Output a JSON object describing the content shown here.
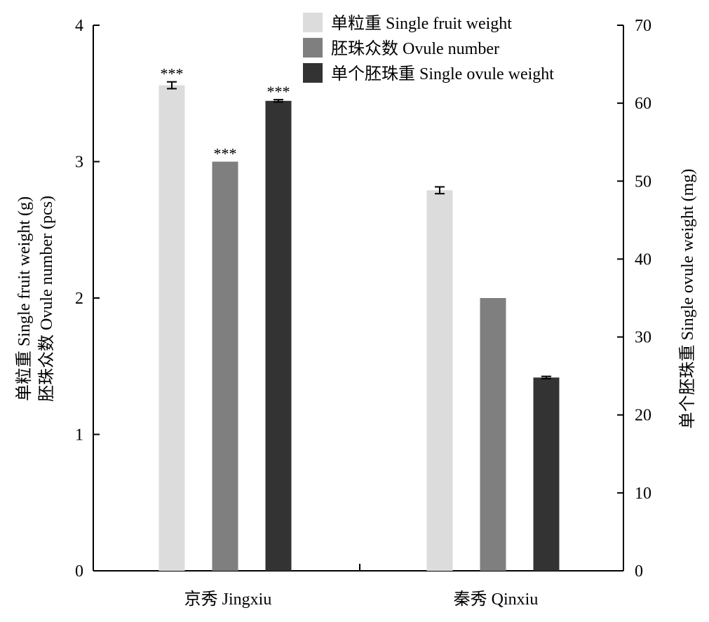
{
  "chart_data": {
    "type": "bar",
    "categories": [
      "京秀 Jingxiu",
      "秦秀 Qinxiu"
    ],
    "series": [
      {
        "name": "单粒重 Single fruit weight",
        "axis": "left",
        "color": "#dcdcdc",
        "values": [
          3.56,
          2.79
        ],
        "errors": [
          0.025,
          0.025
        ],
        "significance": [
          "***",
          ""
        ]
      },
      {
        "name": "胚珠众数 Ovule number",
        "axis": "left",
        "color": "#7f7f7f",
        "values": [
          3.0,
          2.0
        ],
        "errors": [
          0,
          0
        ],
        "significance": [
          "***",
          ""
        ]
      },
      {
        "name": "单个胚珠重 Single ovule weight",
        "axis": "right",
        "color": "#333333",
        "values": [
          60.3,
          24.8
        ],
        "errors": [
          0.15,
          0.15
        ],
        "significance": [
          "***",
          ""
        ]
      }
    ],
    "y_left": {
      "label_line1": "单粒重 Single fruit weight (g)",
      "label_line2": "胚珠众数 Ovule number (pcs)",
      "ylim": [
        0,
        4
      ],
      "ticks": [
        "0",
        "1",
        "2",
        "3",
        "4"
      ]
    },
    "y_right": {
      "label": "单个胚珠重 Single ovule weight (mg)",
      "ylim": [
        0,
        70
      ],
      "ticks": [
        "0",
        "10",
        "20",
        "30",
        "40",
        "50",
        "60",
        "70"
      ]
    },
    "legend_position": "top-right",
    "grid": false
  }
}
